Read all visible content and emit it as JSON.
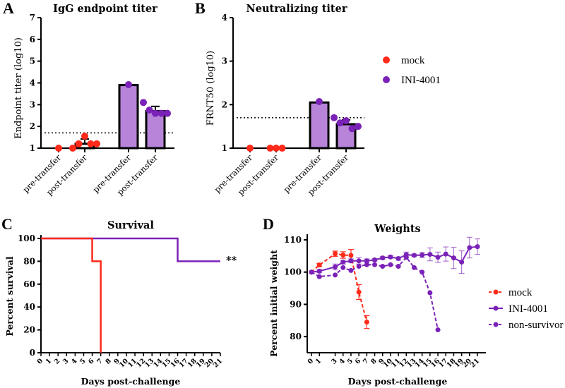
{
  "chart_data": [
    {
      "panel": "A",
      "type": "bar",
      "title": "IgG endpoint titer",
      "ylabel": "Endpoint titer (log10)",
      "xlabel": "",
      "ylim": [
        1,
        7
      ],
      "yticks": [
        1,
        2,
        3,
        4,
        5,
        6,
        7
      ],
      "threshold": 1.7,
      "categories": [
        "pre-transfer",
        "post-transfer",
        "pre-transfer",
        "post-transfer"
      ],
      "groups": [
        "mock",
        "mock",
        "INI-4001",
        "INI-4001"
      ],
      "values": [
        1.0,
        1.2,
        3.9,
        2.7
      ],
      "error": [
        0,
        0.22,
        0,
        0.22
      ],
      "points": [
        [
          1.0
        ],
        [
          1.0,
          1.2,
          1.55,
          1.2,
          1.2
        ],
        [
          3.92
        ],
        [
          3.1,
          2.75,
          2.6,
          2.6,
          2.6
        ]
      ]
    },
    {
      "panel": "B",
      "type": "bar",
      "title": "Neutralizing titer",
      "ylabel": "FRNT50 (log10)",
      "xlabel": "",
      "ylim": [
        1,
        4
      ],
      "yticks": [
        1,
        2,
        3,
        4
      ],
      "threshold": 1.7,
      "categories": [
        "pre-transfer",
        "post-transfer",
        "pre-transfer",
        "post-transfer"
      ],
      "groups": [
        "mock",
        "mock",
        "INI-4001",
        "INI-4001"
      ],
      "values": [
        1.0,
        1.0,
        2.05,
        1.55
      ],
      "error": [
        0,
        0,
        0,
        0.1
      ],
      "points": [
        [
          1.0
        ],
        [
          1.0,
          1.0,
          1.0
        ],
        [
          2.07
        ],
        [
          1.7,
          1.58,
          1.63,
          1.45,
          1.5
        ]
      ]
    },
    {
      "panel": "C",
      "type": "line",
      "subtype": "step",
      "title": "Survival",
      "xlabel": "Days post-challenge",
      "ylabel": "Percent survival",
      "ylim": [
        0,
        100
      ],
      "yticks": [
        0,
        20,
        40,
        60,
        80,
        100
      ],
      "xlim": [
        0,
        21
      ],
      "xticks": [
        0,
        1,
        2,
        3,
        4,
        5,
        6,
        7,
        8,
        9,
        10,
        11,
        12,
        13,
        14,
        15,
        16,
        17,
        18,
        19,
        20,
        21
      ],
      "annotation": "**",
      "series": [
        {
          "name": "mock",
          "color": "#ff2a1a",
          "x": [
            0,
            6,
            6,
            7,
            7
          ],
          "y": [
            100,
            100,
            80,
            80,
            0
          ]
        },
        {
          "name": "INI-4001",
          "color": "#7a22b8",
          "x": [
            0,
            16,
            16,
            21
          ],
          "y": [
            100,
            100,
            80,
            80
          ]
        }
      ]
    },
    {
      "panel": "D",
      "type": "line",
      "title": "Weights",
      "xlabel": "Days post-challenge",
      "ylabel": "Percent initial weight",
      "ylim": [
        75,
        110
      ],
      "yticks": [
        80,
        90,
        100,
        110
      ],
      "xlim": [
        0,
        21
      ],
      "xticks": [
        0,
        1,
        3,
        4,
        5,
        6,
        7,
        8,
        9,
        10,
        11,
        12,
        13,
        14,
        15,
        16,
        17,
        18,
        19,
        20,
        21
      ],
      "legend": "right",
      "series": [
        {
          "name": "mock",
          "color": "#ff2a1a",
          "dashed": true,
          "x": [
            0,
            1,
            3,
            4,
            5,
            6,
            7
          ],
          "y": [
            100,
            102.2,
            105.7,
            105.3,
            105.2,
            93.8,
            84.5
          ],
          "err": [
            0,
            0.5,
            0.8,
            1.0,
            1.8,
            2.3,
            2.0
          ]
        },
        {
          "name": "INI-4001",
          "color": "#7a22b8",
          "dashed": false,
          "x": [
            0,
            1,
            3,
            4,
            5,
            6,
            7,
            8,
            9,
            10,
            11,
            12,
            13,
            14,
            15,
            16,
            17,
            18,
            19,
            20,
            21
          ],
          "y": [
            100,
            100.3,
            101.6,
            103.1,
            103.5,
            103.5,
            103.5,
            103.8,
            104.4,
            104.7,
            104.2,
            105.4,
            105.2,
            105.3,
            105.5,
            104.6,
            105.6,
            104.4,
            103.1,
            107.6,
            107.9
          ],
          "err": [
            0,
            0.5,
            0.9,
            0.6,
            0.6,
            1.0,
            0.6,
            0.4,
            0.4,
            0.4,
            0.5,
            0.8,
            0.4,
            0.8,
            2.0,
            1.6,
            2.2,
            3.3,
            3.5,
            3.2,
            2.4
          ]
        },
        {
          "name": "non-survivor",
          "color": "#7a22b8",
          "dashed": true,
          "x": [
            0,
            1,
            3,
            4,
            5,
            6,
            7,
            8,
            9,
            10,
            11,
            12,
            13,
            14,
            15,
            16
          ],
          "y": [
            100,
            98.6,
            99.1,
            101.4,
            100.5,
            101.8,
            102.3,
            102.3,
            101.8,
            102.3,
            101.8,
            104.6,
            101.4,
            100.0,
            93.6,
            82.1
          ],
          "err": [
            0,
            0,
            0,
            0,
            0,
            0,
            0,
            0,
            0,
            0,
            0,
            0,
            0,
            0,
            0,
            0
          ]
        }
      ]
    }
  ],
  "panels": {
    "A": {
      "letter": "A",
      "title": "IgG endpoint titer",
      "ylabel": "Endpoint titer (log10)"
    },
    "B": {
      "letter": "B",
      "title": "Neutralizing titer",
      "ylabel": "FRNT50 (log10)"
    },
    "C": {
      "letter": "C",
      "title": "Survival",
      "ylabel": "Percent survival",
      "xlabel": "Days post-challenge",
      "annotation": "**"
    },
    "D": {
      "letter": "D",
      "title": "Weights",
      "ylabel": "Percent initial weight",
      "xlabel": "Days post-challenge"
    }
  },
  "top_legend": [
    {
      "label": "mock",
      "color": "#ff2a1a"
    },
    {
      "label": "INI-4001",
      "color": "#7a22b8"
    }
  ],
  "colors": {
    "mock": "#ff2a1a",
    "ini": "#7a22b8",
    "bar_fill": "#b784d9"
  }
}
